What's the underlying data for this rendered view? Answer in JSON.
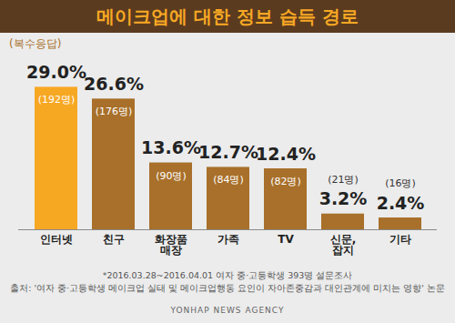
{
  "chart_data": {
    "type": "bar",
    "title": "메이크업에 대한 정보 습득 경로",
    "subtitle": "(복수응답)",
    "categories": [
      "인터넷",
      "친구",
      "화장품 매장",
      "가족",
      "TV",
      "신문, 잡지",
      "기타"
    ],
    "values": [
      29.0,
      26.6,
      13.6,
      12.7,
      12.4,
      3.2,
      2.4
    ],
    "value_labels": [
      "29.0%",
      "26.6%",
      "13.6%",
      "12.7%",
      "12.4%",
      "3.2%",
      "2.4%"
    ],
    "counts": [
      192,
      176,
      90,
      84,
      82,
      21,
      16
    ],
    "count_labels": [
      "(192명)",
      "(176명)",
      "(90명)",
      "(84명)",
      "(82명)",
      "(21명)",
      "(16명)"
    ],
    "colors": [
      "#f7a823",
      "#a8702a",
      "#a8702a",
      "#a8702a",
      "#a8702a",
      "#a8702a",
      "#a8702a"
    ],
    "ylim": [
      0,
      30
    ],
    "data_labels": true,
    "tick_labels": "x",
    "grid": false,
    "annotations": [
      "*2016.03.28~2016.04.01 여자 중·고등학생 393명 설문조사",
      "출처: '여자 중·고등학생 메이크업 실태 및 메이크업행동 요인이 자아존중감과 대인관계에 미치는 영향' 논문",
      "YONHAP NEWS AGENCY"
    ]
  }
}
